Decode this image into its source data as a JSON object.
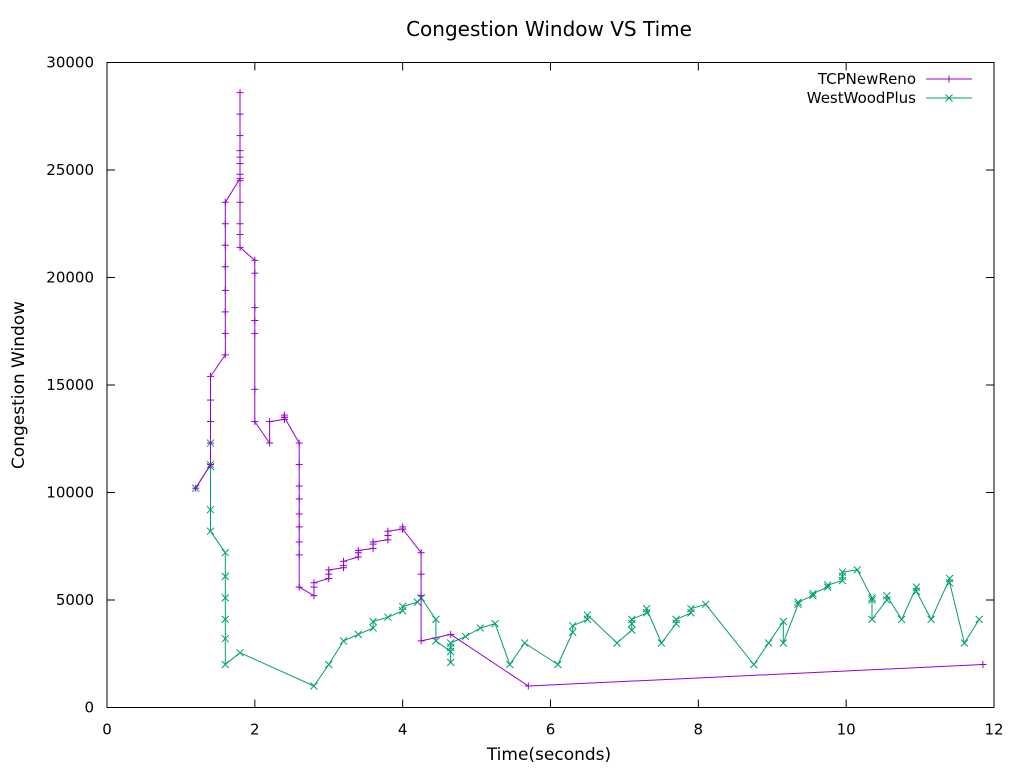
{
  "chart_data": {
    "type": "line",
    "title": "Congestion Window VS Time",
    "xlabel": "Time(seconds)",
    "ylabel": "Congestion Window",
    "xlim": [
      0,
      12
    ],
    "ylim": [
      0,
      30000
    ],
    "xticks": [
      0,
      2,
      4,
      6,
      8,
      10,
      12
    ],
    "yticks": [
      0,
      5000,
      10000,
      15000,
      20000,
      25000,
      30000
    ],
    "grid": false,
    "legend_position": "top-right",
    "series": [
      {
        "name": "TCPNewReno",
        "color": "#9400d3",
        "marker": "plus",
        "points": [
          [
            1.2,
            10200
          ],
          [
            1.4,
            11300
          ],
          [
            1.4,
            12300
          ],
          [
            1.4,
            13300
          ],
          [
            1.4,
            14300
          ],
          [
            1.4,
            15400
          ],
          [
            1.6,
            16400
          ],
          [
            1.6,
            17400
          ],
          [
            1.6,
            18400
          ],
          [
            1.6,
            19400
          ],
          [
            1.6,
            20500
          ],
          [
            1.6,
            21500
          ],
          [
            1.6,
            22500
          ],
          [
            1.6,
            23500
          ],
          [
            1.8,
            24600
          ],
          [
            1.8,
            24800
          ],
          [
            1.8,
            25300
          ],
          [
            1.8,
            25600
          ],
          [
            1.8,
            25900
          ],
          [
            1.8,
            26600
          ],
          [
            1.8,
            27600
          ],
          [
            1.8,
            28600
          ],
          [
            1.8,
            24500
          ],
          [
            1.8,
            23500
          ],
          [
            1.8,
            22500
          ],
          [
            1.8,
            22000
          ],
          [
            1.8,
            21400
          ],
          [
            2.0,
            20800
          ],
          [
            2.0,
            20200
          ],
          [
            2.0,
            18600
          ],
          [
            2.0,
            18000
          ],
          [
            2.0,
            17400
          ],
          [
            2.0,
            14800
          ],
          [
            2.0,
            13300
          ],
          [
            2.2,
            12300
          ],
          [
            2.2,
            13300
          ],
          [
            2.4,
            13400
          ],
          [
            2.4,
            13500
          ],
          [
            2.4,
            13600
          ],
          [
            2.4,
            13500
          ],
          [
            2.6,
            12300
          ],
          [
            2.6,
            11300
          ],
          [
            2.6,
            10300
          ],
          [
            2.6,
            9700
          ],
          [
            2.6,
            9000
          ],
          [
            2.6,
            8400
          ],
          [
            2.6,
            7700
          ],
          [
            2.6,
            7100
          ],
          [
            2.6,
            5600
          ],
          [
            2.8,
            5200
          ],
          [
            2.8,
            5600
          ],
          [
            2.8,
            5800
          ],
          [
            3.0,
            6000
          ],
          [
            3.0,
            6200
          ],
          [
            3.0,
            6400
          ],
          [
            3.2,
            6500
          ],
          [
            3.2,
            6600
          ],
          [
            3.2,
            6800
          ],
          [
            3.4,
            7000
          ],
          [
            3.4,
            7200
          ],
          [
            3.4,
            7300
          ],
          [
            3.6,
            7400
          ],
          [
            3.6,
            7600
          ],
          [
            3.6,
            7700
          ],
          [
            3.8,
            7800
          ],
          [
            3.8,
            8000
          ],
          [
            3.8,
            8200
          ],
          [
            4.0,
            8300
          ],
          [
            4.0,
            8400
          ],
          [
            4.0,
            8300
          ],
          [
            4.25,
            7200
          ],
          [
            4.25,
            6200
          ],
          [
            4.25,
            5200
          ],
          [
            4.25,
            3100
          ],
          [
            4.65,
            3400
          ],
          [
            5.7,
            1000
          ],
          [
            11.85,
            2000
          ]
        ]
      },
      {
        "name": "WestWoodPlus",
        "color": "#009e73",
        "marker": "cross",
        "points": [
          [
            1.2,
            10200
          ],
          [
            1.4,
            11300
          ],
          [
            1.4,
            12300
          ],
          [
            1.4,
            11200
          ],
          [
            1.4,
            9200
          ],
          [
            1.4,
            8200
          ],
          [
            1.6,
            7200
          ],
          [
            1.6,
            6100
          ],
          [
            1.6,
            5100
          ],
          [
            1.6,
            4100
          ],
          [
            1.6,
            3200
          ],
          [
            1.6,
            2000
          ],
          [
            1.8,
            2550
          ],
          [
            2.8,
            1000
          ],
          [
            3.0,
            2000
          ],
          [
            3.2,
            3100
          ],
          [
            3.4,
            3400
          ],
          [
            3.6,
            3700
          ],
          [
            3.6,
            4000
          ],
          [
            3.8,
            4200
          ],
          [
            4.0,
            4500
          ],
          [
            4.0,
            4700
          ],
          [
            4.2,
            4900
          ],
          [
            4.25,
            5100
          ],
          [
            4.45,
            4100
          ],
          [
            4.45,
            3100
          ],
          [
            4.65,
            2600
          ],
          [
            4.65,
            2100
          ],
          [
            4.65,
            2800
          ],
          [
            4.65,
            3000
          ],
          [
            4.85,
            3300
          ],
          [
            5.05,
            3700
          ],
          [
            5.25,
            3900
          ],
          [
            5.45,
            2000
          ],
          [
            5.65,
            3000
          ],
          [
            6.1,
            2000
          ],
          [
            6.3,
            3500
          ],
          [
            6.3,
            3800
          ],
          [
            6.5,
            4100
          ],
          [
            6.5,
            4300
          ],
          [
            6.9,
            3000
          ],
          [
            7.1,
            3600
          ],
          [
            7.1,
            3900
          ],
          [
            7.1,
            4100
          ],
          [
            7.3,
            4400
          ],
          [
            7.3,
            4600
          ],
          [
            7.5,
            3000
          ],
          [
            7.7,
            3900
          ],
          [
            7.7,
            4100
          ],
          [
            7.9,
            4400
          ],
          [
            7.9,
            4600
          ],
          [
            8.1,
            4800
          ],
          [
            8.75,
            2000
          ],
          [
            8.95,
            3000
          ],
          [
            9.15,
            4000
          ],
          [
            9.15,
            3000
          ],
          [
            9.35,
            4800
          ],
          [
            9.35,
            4900
          ],
          [
            9.55,
            5200
          ],
          [
            9.55,
            5300
          ],
          [
            9.75,
            5600
          ],
          [
            9.75,
            5700
          ],
          [
            9.95,
            5900
          ],
          [
            9.95,
            6100
          ],
          [
            9.95,
            6300
          ],
          [
            10.15,
            6400
          ],
          [
            10.35,
            5100
          ],
          [
            10.35,
            5000
          ],
          [
            10.35,
            4100
          ],
          [
            10.55,
            5000
          ],
          [
            10.55,
            5200
          ],
          [
            10.75,
            4100
          ],
          [
            10.95,
            5600
          ],
          [
            10.95,
            5400
          ],
          [
            11.15,
            4100
          ],
          [
            11.4,
            6000
          ],
          [
            11.4,
            5800
          ],
          [
            11.6,
            3000
          ],
          [
            11.8,
            4100
          ]
        ]
      }
    ]
  }
}
